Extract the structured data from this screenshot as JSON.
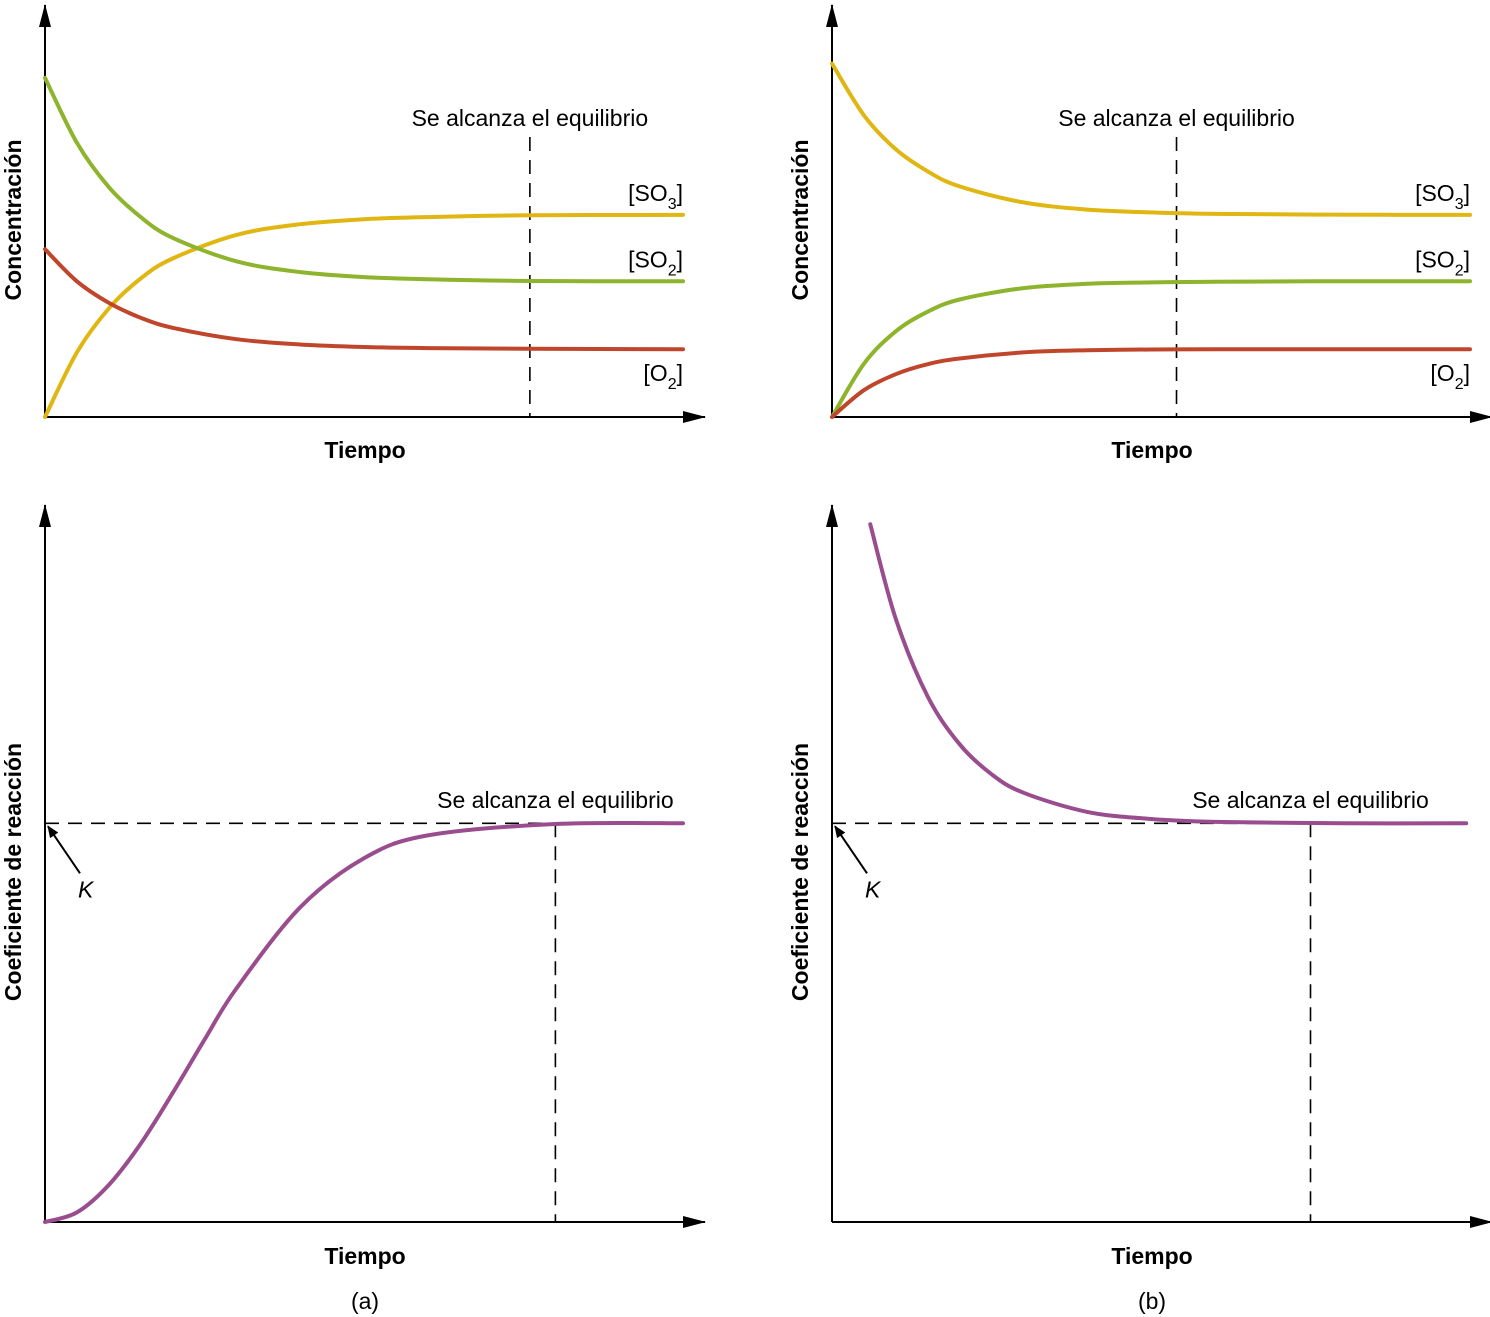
{
  "colors": {
    "SO3": "#e0b612",
    "SO2": "#8db42c",
    "O2": "#c0462b",
    "Q": "#9a4d8e"
  },
  "chart_data": [
    {
      "type": "line",
      "panel": "a-top",
      "ylabel": "Concentración",
      "xlabel": "Tiempo",
      "annotation": "Se alcanza el equilibrio",
      "equilibrium_t": 0.76,
      "x": [
        0,
        0.05,
        0.1,
        0.15,
        0.2,
        0.3,
        0.4,
        0.5,
        0.6,
        0.76,
        1
      ],
      "series": [
        {
          "key": "SO3",
          "label": {
            "open": "[SO",
            "sub": "3",
            "close": "]"
          },
          "values": [
            0,
            0.181,
            0.304,
            0.388,
            0.444,
            0.51,
            0.54,
            0.554,
            0.56,
            0.565,
            0.566
          ]
        },
        {
          "key": "SO2",
          "label": {
            "open": "[SO",
            "sub": "2",
            "close": "]"
          },
          "values": [
            0.95,
            0.768,
            0.644,
            0.56,
            0.502,
            0.436,
            0.406,
            0.392,
            0.386,
            0.381,
            0.38
          ]
        },
        {
          "key": "O2",
          "label": {
            "open": "[O",
            "sub": "2",
            "close": "]"
          },
          "values": [
            0.47,
            0.38,
            0.32,
            0.278,
            0.25,
            0.218,
            0.203,
            0.196,
            0.193,
            0.191,
            0.19
          ]
        }
      ]
    },
    {
      "type": "line",
      "panel": "b-top",
      "ylabel": "Concentración",
      "xlabel": "Tiempo",
      "annotation": "Se alcanza el equilibrio",
      "equilibrium_t": 0.54,
      "x": [
        0,
        0.05,
        0.1,
        0.15,
        0.2,
        0.3,
        0.4,
        0.5,
        0.6,
        0.76,
        1
      ],
      "series": [
        {
          "key": "SO3",
          "label": {
            "open": "[SO",
            "sub": "3",
            "close": "]"
          },
          "values": [
            0.99,
            0.845,
            0.75,
            0.688,
            0.646,
            0.601,
            0.581,
            0.573,
            0.569,
            0.567,
            0.566
          ]
        },
        {
          "key": "SO2",
          "label": {
            "open": "[SO",
            "sub": "2",
            "close": "]"
          },
          "values": [
            0,
            0.149,
            0.24,
            0.295,
            0.329,
            0.361,
            0.373,
            0.377,
            0.379,
            0.38,
            0.38
          ]
        },
        {
          "key": "O2",
          "label": {
            "open": "[O",
            "sub": "2",
            "close": "]"
          },
          "values": [
            0,
            0.075,
            0.12,
            0.148,
            0.164,
            0.181,
            0.187,
            0.189,
            0.19,
            0.19,
            0.19
          ]
        }
      ]
    },
    {
      "type": "line",
      "panel": "a-bottom",
      "ylabel": "Coeficiente de reacción",
      "xlabel": "Tiempo",
      "annotation": "Se alcanza el equilibrio",
      "equilibrium_t": 0.8,
      "k_label": "K",
      "K": 0.56,
      "x": [
        0,
        0.05,
        0.1,
        0.15,
        0.2,
        0.25,
        0.3,
        0.4,
        0.5,
        0.6,
        0.8,
        1
      ],
      "series": [
        {
          "key": "Q",
          "values": [
            0,
            0.0135,
            0.052,
            0.11,
            0.181,
            0.256,
            0.328,
            0.442,
            0.511,
            0.543,
            0.559,
            0.56
          ]
        }
      ]
    },
    {
      "type": "line",
      "panel": "b-bottom",
      "ylabel": "Coeficiente de reacción",
      "xlabel": "Tiempo",
      "annotation": "Se alcanza el equilibrio",
      "equilibrium_t": 0.75,
      "k_label": "K",
      "K": 0.56,
      "x": [
        0.06,
        0.1,
        0.15,
        0.2,
        0.25,
        0.3,
        0.4,
        0.5,
        0.6,
        0.8,
        0.994
      ],
      "series": [
        {
          "key": "Q",
          "values": [
            0.98,
            0.847,
            0.738,
            0.671,
            0.629,
            0.603,
            0.576,
            0.566,
            0.562,
            0.56,
            0.56
          ]
        }
      ]
    }
  ],
  "captions": {
    "a": "(a)",
    "b": "(b)"
  }
}
